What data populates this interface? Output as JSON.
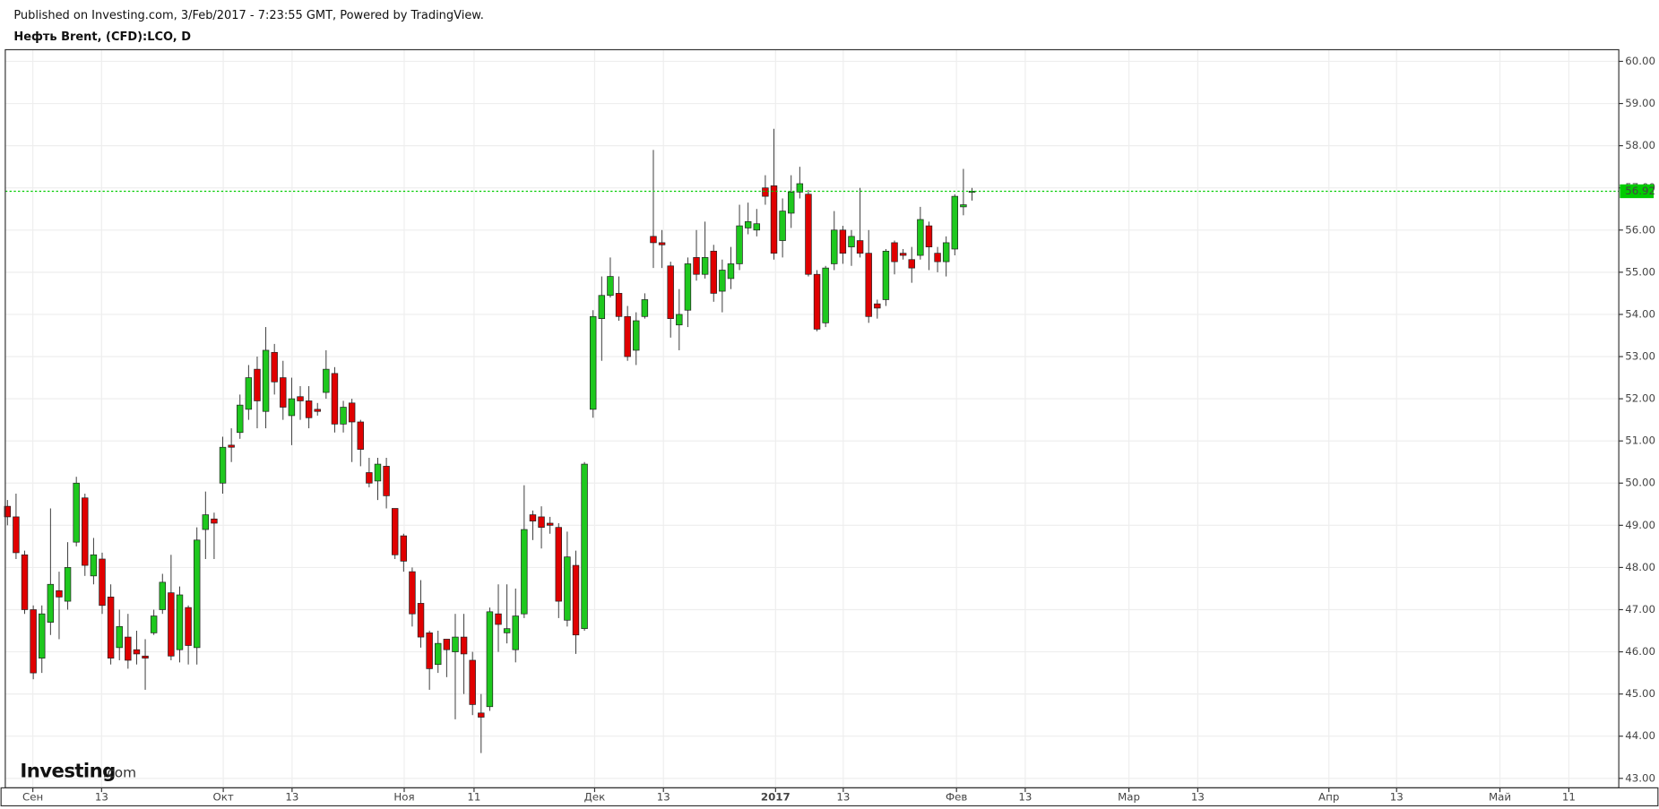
{
  "chart_data": {
    "type": "candlestick",
    "source": "Published on Investing.com, 3/Feb/2017 - 7:23:55 GMT, Powered by TradingView.",
    "title": "Нефть Brent, (CFD):LCO, D",
    "logo": [
      "Investing",
      ".com"
    ],
    "up_color": "#1ec81e",
    "down_color": "#e00000",
    "grid": true,
    "x": [
      0,
      1,
      2,
      3,
      4,
      5,
      6,
      7,
      8,
      9,
      10,
      11,
      12,
      13,
      14,
      15,
      16,
      17,
      18,
      19,
      20,
      21,
      22,
      23,
      24,
      25,
      26,
      27,
      28,
      29,
      30,
      31,
      32,
      33,
      34,
      35,
      36,
      37,
      38,
      39,
      40,
      41,
      42,
      43,
      44,
      45,
      46,
      47,
      48,
      49,
      50,
      51,
      52,
      53,
      54,
      55,
      56,
      57,
      58,
      59,
      60,
      61,
      62,
      63,
      64,
      65,
      66,
      67,
      68,
      69,
      70,
      71,
      72,
      73,
      74,
      75,
      76,
      77,
      78,
      79,
      80,
      81,
      82,
      83,
      84,
      85,
      86,
      87,
      88,
      89,
      90,
      91,
      92,
      93,
      94,
      95,
      96,
      97,
      98,
      99,
      100,
      101,
      102,
      103,
      104,
      105,
      106,
      107,
      108,
      109,
      110,
      111,
      112
    ],
    "open": [
      49.45,
      49.2,
      48.3,
      47.0,
      45.85,
      46.7,
      47.45,
      47.2,
      48.6,
      49.65,
      47.8,
      48.2,
      47.3,
      46.1,
      46.35,
      46.05,
      45.9,
      46.45,
      47.0,
      47.4,
      46.05,
      47.05,
      46.1,
      48.9,
      49.15,
      50.0,
      50.9,
      51.2,
      51.75,
      52.7,
      51.7,
      53.1,
      52.5,
      51.6,
      52.05,
      51.95,
      51.75,
      52.15,
      52.6,
      51.4,
      51.9,
      51.45,
      50.25,
      50.05,
      50.4,
      49.4,
      48.75,
      47.9,
      47.15,
      46.45,
      45.7,
      46.3,
      46.0,
      46.35,
      45.8,
      44.55,
      44.7,
      46.9,
      46.45,
      46.05,
      46.9,
      49.25,
      49.2,
      49.05,
      48.95,
      46.75,
      48.05,
      46.55,
      51.75,
      53.9,
      54.45,
      54.5,
      53.95,
      53.15,
      53.95,
      55.85,
      55.7,
      55.15,
      53.75,
      54.1,
      55.35,
      54.95,
      55.5,
      54.55,
      54.85,
      55.2,
      56.05,
      56.0,
      57.0,
      57.05,
      55.75,
      56.4,
      56.9,
      56.85,
      54.95,
      53.8,
      55.2,
      56.0,
      55.6,
      55.75,
      55.45,
      54.25,
      54.35,
      55.7,
      55.45,
      55.3,
      55.4,
      56.1,
      55.45,
      55.25,
      55.55,
      56.55,
      56.9
    ],
    "high": [
      49.6,
      49.75,
      48.4,
      47.1,
      47.1,
      49.4,
      47.9,
      48.6,
      50.15,
      49.75,
      48.7,
      48.35,
      47.6,
      47.0,
      46.9,
      46.5,
      46.3,
      47.0,
      47.85,
      48.3,
      47.55,
      47.1,
      48.95,
      49.8,
      49.3,
      51.1,
      51.3,
      52.1,
      52.8,
      53.0,
      53.7,
      53.3,
      52.9,
      52.5,
      52.3,
      52.3,
      51.9,
      53.15,
      52.75,
      51.95,
      52.0,
      51.5,
      50.6,
      50.6,
      50.6,
      49.4,
      48.8,
      48.0,
      47.7,
      46.5,
      46.5,
      46.3,
      46.9,
      46.9,
      46.0,
      45.0,
      47.05,
      47.6,
      47.6,
      47.5,
      49.95,
      49.35,
      49.45,
      49.2,
      49.05,
      48.85,
      48.4,
      50.5,
      54.1,
      54.9,
      55.35,
      54.9,
      54.2,
      54.05,
      54.5,
      57.9,
      56.0,
      55.25,
      54.6,
      55.35,
      56.0,
      56.2,
      55.65,
      55.3,
      55.6,
      56.6,
      56.65,
      56.5,
      57.3,
      58.4,
      56.75,
      57.3,
      57.5,
      56.95,
      55.05,
      55.15,
      56.45,
      56.1,
      56.0,
      57.0,
      56.0,
      54.35,
      55.55,
      55.75,
      55.55,
      55.6,
      56.55,
      56.2,
      55.6,
      55.85,
      56.85,
      57.45,
      57.0
    ],
    "low": [
      49.0,
      48.2,
      46.9,
      45.35,
      45.5,
      46.4,
      46.3,
      47.0,
      48.5,
      47.8,
      47.6,
      46.9,
      45.7,
      45.8,
      45.6,
      45.7,
      45.1,
      46.4,
      46.9,
      45.8,
      45.75,
      45.7,
      45.7,
      48.2,
      48.2,
      49.75,
      50.5,
      51.05,
      51.5,
      51.3,
      51.3,
      52.1,
      51.5,
      50.9,
      51.5,
      51.3,
      51.6,
      52.0,
      51.2,
      51.2,
      50.5,
      50.4,
      49.9,
      49.6,
      49.4,
      48.2,
      47.9,
      46.6,
      46.1,
      45.1,
      45.5,
      45.4,
      44.4,
      45.0,
      44.5,
      43.6,
      44.6,
      46.0,
      46.2,
      45.75,
      46.8,
      48.65,
      48.45,
      48.8,
      46.8,
      46.6,
      45.95,
      46.5,
      51.55,
      52.9,
      54.4,
      53.85,
      52.9,
      52.8,
      53.9,
      55.1,
      55.1,
      53.45,
      53.15,
      53.7,
      54.8,
      54.85,
      54.3,
      54.05,
      54.6,
      55.05,
      55.9,
      55.85,
      56.6,
      55.3,
      55.35,
      56.05,
      56.75,
      54.9,
      53.6,
      53.7,
      55.05,
      55.2,
      55.15,
      55.35,
      53.8,
      53.9,
      54.2,
      54.95,
      55.3,
      54.75,
      55.3,
      55.05,
      55.0,
      54.9,
      55.4,
      56.35,
      56.7
    ],
    "close": [
      49.2,
      48.35,
      47.0,
      45.5,
      46.9,
      47.6,
      47.3,
      48.0,
      50.0,
      48.05,
      48.3,
      47.1,
      45.85,
      46.6,
      45.8,
      45.95,
      45.85,
      46.85,
      47.65,
      45.9,
      47.35,
      46.15,
      48.65,
      49.25,
      49.05,
      50.85,
      50.85,
      51.85,
      52.5,
      51.95,
      53.15,
      52.4,
      51.8,
      52.0,
      51.95,
      51.55,
      51.7,
      52.7,
      51.4,
      51.8,
      51.45,
      50.8,
      50.0,
      50.45,
      49.7,
      48.3,
      48.15,
      46.9,
      46.35,
      45.6,
      46.2,
      46.05,
      46.35,
      45.95,
      44.75,
      44.45,
      46.95,
      46.65,
      46.55,
      46.85,
      48.9,
      49.1,
      48.95,
      49.0,
      47.2,
      48.25,
      46.4,
      50.45,
      53.95,
      54.45,
      54.9,
      53.95,
      53.0,
      53.85,
      54.35,
      55.7,
      55.65,
      53.9,
      54.0,
      55.2,
      54.95,
      55.35,
      54.5,
      55.05,
      55.2,
      56.1,
      56.2,
      56.15,
      56.8,
      55.45,
      56.45,
      56.9,
      57.1,
      54.95,
      53.65,
      55.1,
      56.0,
      55.45,
      55.85,
      55.45,
      53.95,
      54.15,
      55.5,
      55.25,
      55.4,
      55.1,
      56.25,
      55.6,
      55.25,
      55.7,
      56.8,
      56.6,
      56.92
    ],
    "last_price": {
      "value": 56.92,
      "label": "56.92"
    },
    "last_color": "#00cc00",
    "xlim": [
      -0.25,
      187.1
    ],
    "xticks": [
      {
        "value": 2.95,
        "label": "Сен"
      },
      {
        "value": 10.93,
        "label": "13"
      },
      {
        "value": 25.06,
        "label": "Окт"
      },
      {
        "value": 33.05,
        "label": "13"
      },
      {
        "value": 46.07,
        "label": "Ноя"
      },
      {
        "value": 54.18,
        "label": "11"
      },
      {
        "value": 68.18,
        "label": "Дек"
      },
      {
        "value": 76.17,
        "label": "13"
      },
      {
        "value": 89.19,
        "label": "2017"
      },
      {
        "value": 97.05,
        "label": "13"
      },
      {
        "value": 110.2,
        "label": "Фев"
      },
      {
        "value": 118.18,
        "label": "13"
      },
      {
        "value": 130.22,
        "label": "Мар"
      },
      {
        "value": 138.21,
        "label": "13"
      },
      {
        "value": 153.44,
        "label": "Апр"
      },
      {
        "value": 161.3,
        "label": "13"
      },
      {
        "value": 173.3,
        "label": "Май"
      },
      {
        "value": 181.3,
        "label": "11"
      }
    ],
    "ylim": [
      42.775,
      60.276
    ],
    "yticks": [
      {
        "value": 43,
        "label": "43.00"
      },
      {
        "value": 44,
        "label": "44.00"
      },
      {
        "value": 45,
        "label": "45.00"
      },
      {
        "value": 46,
        "label": "46.00"
      },
      {
        "value": 47,
        "label": "47.00"
      },
      {
        "value": 48,
        "label": "48.00"
      },
      {
        "value": 49,
        "label": "49.00"
      },
      {
        "value": 50,
        "label": "50.00"
      },
      {
        "value": 51,
        "label": "51.00"
      },
      {
        "value": 52,
        "label": "52.00"
      },
      {
        "value": 53,
        "label": "53.00"
      },
      {
        "value": 54,
        "label": "54.00"
      },
      {
        "value": 55,
        "label": "55.00"
      },
      {
        "value": 56,
        "label": "56.00"
      },
      {
        "value": 57,
        "label": "57.00"
      },
      {
        "value": 58,
        "label": "58.00"
      },
      {
        "value": 59,
        "label": "59.00"
      },
      {
        "value": 60,
        "label": "60.00"
      }
    ]
  }
}
